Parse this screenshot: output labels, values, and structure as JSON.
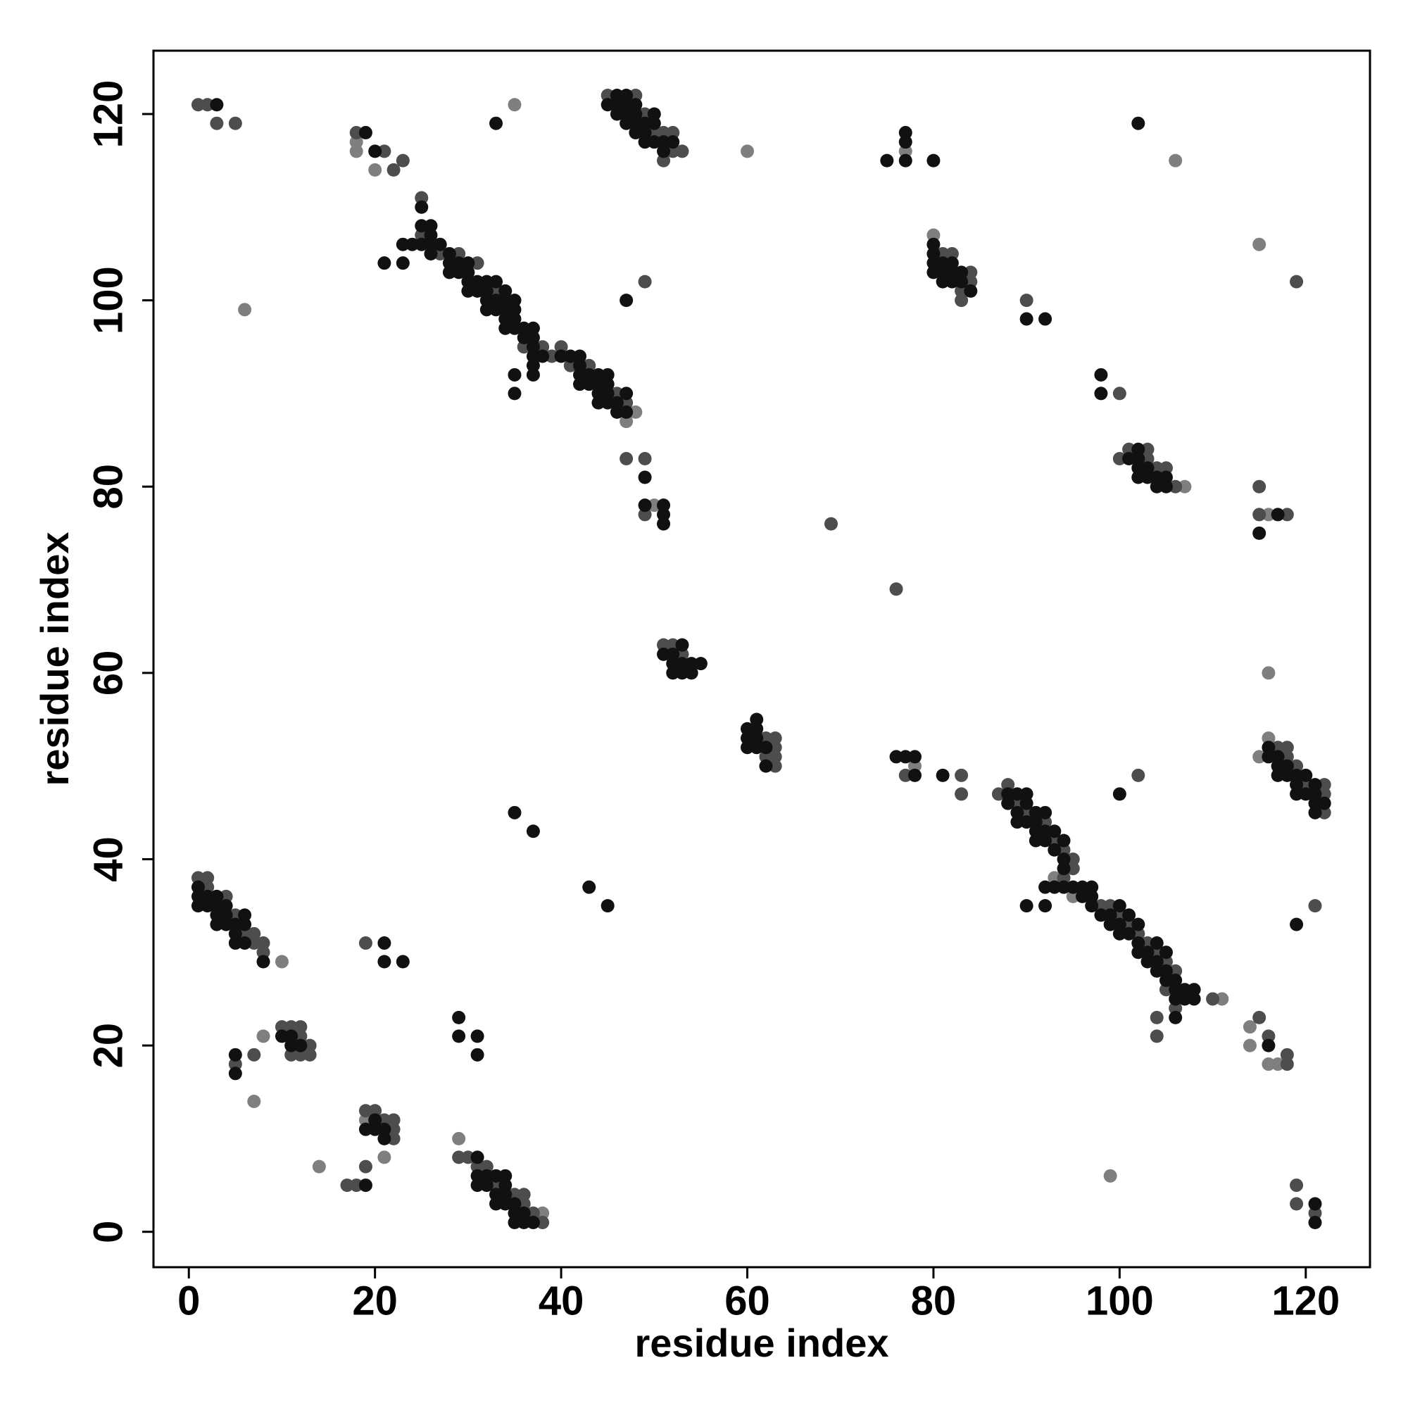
{
  "chart_data": {
    "type": "scatter",
    "xlabel": "residue index",
    "ylabel": "residue index",
    "xlim": [
      -3.8,
      126.9
    ],
    "ylim": [
      -3.8,
      126.8
    ],
    "xticks": [
      0,
      20,
      40,
      60,
      80,
      100,
      120
    ],
    "yticks": [
      0,
      20,
      40,
      60,
      80,
      100,
      120
    ],
    "series": [
      {
        "color": "#7f7f7f",
        "x": [
          35,
          18,
          18,
          20,
          60,
          106,
          77,
          6,
          115,
          50,
          116,
          80,
          107,
          47,
          48,
          99,
          7,
          8,
          14,
          10,
          116,
          115,
          114,
          114,
          116,
          117,
          19,
          21,
          78,
          29,
          38,
          111,
          116,
          93,
          95
        ],
        "values": [
          121,
          117,
          116,
          114,
          116,
          115,
          116,
          99,
          106,
          78,
          60,
          107,
          80,
          87,
          88,
          6,
          14,
          21,
          7,
          29,
          53,
          51,
          22,
          20,
          18,
          18,
          12,
          8,
          50,
          10,
          2,
          25,
          77,
          38,
          36
        ]
      },
      {
        "color": "#4d4d4d",
        "x": [
          1,
          2,
          3,
          5,
          18,
          21,
          22,
          23,
          45,
          48,
          49,
          50,
          51,
          52,
          52,
          53,
          51,
          25,
          25,
          27,
          29,
          31,
          33,
          36,
          38,
          39,
          40,
          41,
          43,
          46,
          47,
          49,
          47,
          49,
          49,
          76,
          69,
          81,
          82,
          84,
          83,
          83,
          84,
          90,
          100,
          100,
          101,
          103,
          103,
          104,
          105,
          106,
          119,
          115,
          115,
          118,
          51,
          52,
          53,
          62,
          63,
          63,
          63,
          63,
          62,
          77,
          83,
          83,
          102,
          117,
          118,
          118,
          119,
          120,
          122,
          122,
          122,
          87,
          88,
          89,
          90,
          92,
          93,
          94,
          95,
          95,
          94,
          98,
          99,
          100,
          101,
          102,
          103,
          104,
          105,
          106,
          105,
          106,
          104,
          104,
          110,
          115,
          116,
          118,
          118,
          119,
          119,
          121,
          1,
          2,
          2,
          4,
          5,
          6,
          7,
          7,
          8,
          8,
          19,
          10,
          11,
          12,
          12,
          11,
          12,
          13,
          13,
          5,
          7,
          19,
          20,
          21,
          22,
          22,
          22,
          17,
          18,
          19,
          29,
          30,
          31,
          32,
          33,
          35,
          36,
          36,
          37,
          38,
          121
        ],
        "values": [
          121,
          121,
          119,
          119,
          118,
          116,
          114,
          115,
          122,
          122,
          120,
          118,
          118,
          118,
          116,
          116,
          115,
          111,
          107,
          105,
          105,
          104,
          101,
          95,
          95,
          94,
          95,
          93,
          93,
          90,
          89,
          102,
          83,
          83,
          77,
          69,
          76,
          105,
          105,
          103,
          101,
          100,
          102,
          100,
          90,
          83,
          84,
          84,
          83,
          82,
          82,
          80,
          102,
          80,
          77,
          77,
          63,
          63,
          62,
          53,
          53,
          52,
          51,
          50,
          51,
          49,
          49,
          47,
          49,
          52,
          52,
          51,
          50,
          48,
          48,
          47,
          45,
          47,
          48,
          46,
          45,
          44,
          42,
          41,
          40,
          39,
          38,
          35,
          35,
          34,
          33,
          32,
          31,
          30,
          29,
          28,
          26,
          24,
          23,
          21,
          25,
          23,
          21,
          18,
          19,
          5,
          3,
          35,
          38,
          38,
          37,
          36,
          34,
          32,
          32,
          31,
          31,
          30,
          31,
          22,
          22,
          22,
          21,
          19,
          19,
          19,
          20,
          18,
          19,
          13,
          13,
          12,
          12,
          11,
          10,
          5,
          5,
          7,
          8,
          8,
          7,
          7,
          5,
          4,
          4,
          3,
          2,
          1,
          2
        ]
      },
      {
        "color": "#111111",
        "x": [
          3,
          33,
          46,
          47,
          45,
          46,
          47,
          48,
          46,
          47,
          48,
          50,
          47,
          48,
          49,
          50,
          48,
          49,
          49,
          50,
          51,
          52,
          51,
          19,
          20,
          75,
          77,
          77,
          77,
          80,
          102,
          25,
          25,
          26,
          26,
          26,
          23,
          24,
          25,
          26,
          27,
          28,
          28,
          28,
          29,
          29,
          30,
          30,
          30,
          31,
          30,
          31,
          32,
          32,
          32,
          33,
          33,
          32,
          33,
          34,
          34,
          34,
          34,
          35,
          35,
          35,
          34,
          35,
          36,
          36,
          37,
          37,
          37,
          37,
          38,
          40,
          41,
          42,
          42,
          42,
          43,
          44,
          42,
          43,
          44,
          45,
          45,
          44,
          45,
          47,
          44,
          45,
          46,
          46,
          47,
          37,
          37,
          35,
          35,
          21,
          23,
          47,
          49,
          49,
          51,
          51,
          51,
          80,
          80,
          80,
          81,
          82,
          80,
          81,
          82,
          83,
          81,
          82,
          83,
          84,
          90,
          92,
          98,
          98,
          101,
          102,
          102,
          102,
          103,
          102,
          103,
          104,
          105,
          104,
          105,
          117,
          115,
          51,
          52,
          52,
          53,
          54,
          55,
          52,
          53,
          54,
          53,
          61,
          60,
          61,
          60,
          61,
          60,
          61,
          62,
          62,
          76,
          77,
          78,
          78,
          81,
          100,
          116,
          116,
          117,
          117,
          118,
          117,
          118,
          119,
          120,
          119,
          121,
          119,
          120,
          121,
          121,
          122,
          121,
          88,
          89,
          90,
          88,
          90,
          89,
          91,
          92,
          89,
          90,
          91,
          91,
          92,
          93,
          91,
          92,
          94,
          93,
          94,
          94,
          92,
          93,
          94,
          95,
          96,
          97,
          96,
          97,
          97,
          100,
          98,
          99,
          101,
          99,
          100,
          102,
          100,
          101,
          102,
          104,
          102,
          103,
          105,
          103,
          104,
          104,
          105,
          105,
          106,
          106,
          107,
          108,
          106,
          107,
          108,
          106,
          90,
          92,
          119,
          116,
          121,
          121,
          35,
          37,
          43,
          45,
          1,
          1,
          2,
          3,
          1,
          2,
          3,
          4,
          3,
          4,
          6,
          3,
          4,
          5,
          6,
          5,
          5,
          6,
          8,
          21,
          21,
          23,
          10,
          11,
          11,
          12,
          5,
          5,
          29,
          29,
          31,
          31,
          20,
          19,
          20,
          21,
          21,
          19,
          31,
          31,
          32,
          33,
          34,
          31,
          32,
          34,
          33,
          34,
          33,
          34,
          35,
          35,
          36,
          35,
          36,
          37
        ],
        "values": [
          121,
          119,
          122,
          122,
          121,
          121,
          121,
          121,
          120,
          120,
          120,
          120,
          119,
          119,
          119,
          119,
          118,
          118,
          117,
          117,
          117,
          117,
          116,
          118,
          116,
          115,
          115,
          117,
          118,
          115,
          119,
          110,
          108,
          108,
          107,
          106,
          106,
          106,
          106,
          105,
          106,
          105,
          104,
          103,
          104,
          103,
          104,
          103,
          102,
          102,
          101,
          101,
          102,
          101,
          100,
          102,
          100,
          99,
          99,
          101,
          100,
          99,
          98,
          100,
          99,
          98,
          97,
          97,
          97,
          96,
          97,
          96,
          95,
          94,
          94,
          94,
          94,
          94,
          93,
          92,
          92,
          92,
          91,
          91,
          91,
          92,
          91,
          90,
          90,
          90,
          89,
          89,
          89,
          88,
          88,
          93,
          92,
          92,
          90,
          104,
          104,
          100,
          81,
          78,
          78,
          77,
          76,
          106,
          105,
          104,
          104,
          104,
          103,
          103,
          103,
          103,
          102,
          102,
          102,
          101,
          98,
          98,
          92,
          90,
          83,
          84,
          83,
          82,
          82,
          81,
          81,
          81,
          81,
          80,
          80,
          77,
          75,
          62,
          62,
          61,
          61,
          61,
          61,
          60,
          60,
          60,
          63,
          55,
          54,
          54,
          53,
          53,
          52,
          52,
          52,
          50,
          51,
          51,
          51,
          49,
          49,
          47,
          52,
          51,
          51,
          50,
          50,
          49,
          49,
          49,
          49,
          48,
          48,
          47,
          47,
          47,
          46,
          46,
          45,
          47,
          47,
          47,
          46,
          46,
          45,
          45,
          45,
          44,
          44,
          44,
          43,
          43,
          43,
          42,
          42,
          42,
          41,
          40,
          39,
          37,
          37,
          37,
          37,
          37,
          37,
          36,
          36,
          35,
          35,
          34,
          34,
          34,
          33,
          33,
          33,
          32,
          32,
          31,
          31,
          30,
          30,
          30,
          29,
          29,
          28,
          28,
          27,
          27,
          26,
          26,
          26,
          25,
          25,
          25,
          23,
          35,
          35,
          33,
          20,
          3,
          1,
          45,
          43,
          37,
          35,
          37,
          36,
          36,
          36,
          35,
          35,
          35,
          35,
          34,
          34,
          34,
          33,
          33,
          33,
          33,
          32,
          31,
          31,
          29,
          31,
          29,
          29,
          21,
          21,
          20,
          20,
          19,
          17,
          23,
          21,
          21,
          19,
          12,
          11,
          11,
          11,
          10,
          5,
          8,
          6,
          6,
          6,
          6,
          5,
          5,
          5,
          4,
          4,
          3,
          3,
          3,
          2,
          2,
          1,
          1,
          1
        ]
      }
    ]
  }
}
